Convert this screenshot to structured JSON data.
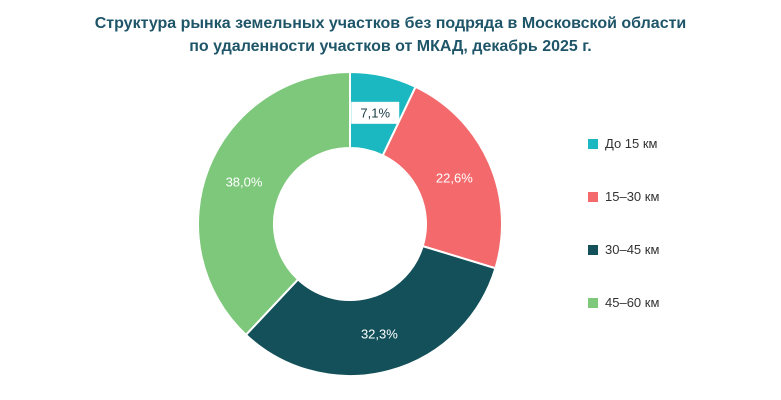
{
  "title": {
    "text": "Структура рынка земельных участков без подряда в Московской области\nпо удаленности участков от МКАД, декабрь 2025 г."
  },
  "chart_data": {
    "type": "pie",
    "subtype": "donut",
    "title": "Структура рынка земельных участков без подряда в Московской области по удаленности участков от МКАД, декабрь 2025 г.",
    "categories": [
      "До 15 км",
      "15–30 км",
      "30–45 км",
      "45–60 км"
    ],
    "values": [
      7.1,
      22.6,
      32.3,
      38.0
    ],
    "labels": [
      "7,1%",
      "22,6%",
      "32,3%",
      "38,0%"
    ],
    "colors": [
      "#1bb8c1",
      "#f3696c",
      "#135059",
      "#7dc87b"
    ],
    "label_text_colors": [
      "#1a3c46",
      "#ffffff",
      "#ffffff",
      "#ffffff"
    ],
    "legend_position": "right",
    "start_angle_deg": 0,
    "direction": "clockwise",
    "donut_hole_ratio": 0.5,
    "background": "#ffffff",
    "title_color": "#1e5568"
  }
}
